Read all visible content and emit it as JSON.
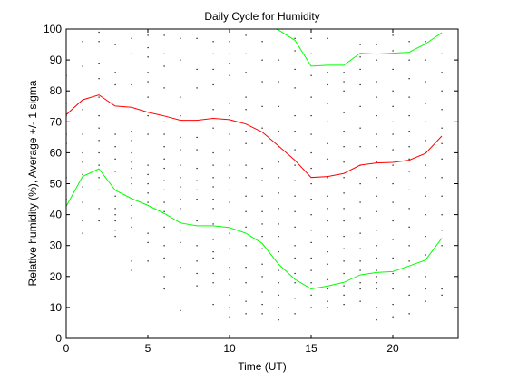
{
  "chart_data": {
    "type": "line",
    "title": "Daily Cycle for Humidity",
    "xlabel": "Time (UT)",
    "ylabel": "Relative humidity (%), Average +/- 1 sigma",
    "xlim": [
      0,
      24
    ],
    "ylim": [
      0,
      100
    ],
    "x_ticks": [
      0,
      5,
      10,
      15,
      20
    ],
    "y_ticks": [
      0,
      10,
      20,
      30,
      40,
      50,
      60,
      70,
      80,
      90,
      100
    ],
    "grid": false,
    "legend": "none",
    "x": [
      0,
      1,
      2,
      3,
      4,
      5,
      6,
      7,
      8,
      9,
      10,
      11,
      12,
      13,
      14,
      15,
      16,
      17,
      18,
      19,
      20,
      21,
      22,
      23
    ],
    "series": [
      {
        "role": "average",
        "color": "#ff0000",
        "values": [
          72.3,
          77.1,
          78.7,
          75.1,
          74.7,
          73.1,
          71.9,
          70.5,
          70.5,
          71.1,
          70.7,
          69.3,
          66.7,
          62.2,
          57.6,
          52.0,
          52.3,
          53.3,
          56.0,
          56.7,
          56.9,
          57.6,
          59.8,
          65.4
        ]
      },
      {
        "role": "average + 1 sigma",
        "color": "#00ff00",
        "values": [
          101.8,
          101.8,
          101.8,
          101.8,
          101.8,
          101.8,
          101.8,
          101.8,
          101.8,
          101.8,
          101.8,
          101.8,
          101.8,
          99.7,
          96.4,
          88.0,
          88.3,
          88.3,
          92.2,
          91.9,
          92.2,
          92.5,
          95.2,
          98.8
        ]
      },
      {
        "role": "average - 1 sigma",
        "color": "#00ff00",
        "values": [
          42.7,
          52.3,
          54.8,
          47.9,
          45.2,
          43.0,
          40.4,
          37.3,
          36.4,
          36.4,
          35.8,
          34.0,
          30.7,
          24.0,
          19.1,
          16.0,
          16.9,
          18.1,
          20.5,
          21.3,
          21.6,
          23.4,
          25.3,
          32.4
        ]
      }
    ],
    "scatter_color": "#000000",
    "scatter_points": [
      [
        0,
        40
      ],
      [
        0,
        45
      ],
      [
        0,
        52
      ],
      [
        0,
        63
      ],
      [
        0,
        66
      ],
      [
        0,
        72
      ],
      [
        0,
        76
      ],
      [
        0,
        80
      ],
      [
        0,
        85
      ],
      [
        1,
        34
      ],
      [
        1,
        38
      ],
      [
        1,
        44
      ],
      [
        1,
        49
      ],
      [
        1,
        53
      ],
      [
        1,
        57
      ],
      [
        1,
        60
      ],
      [
        1,
        66
      ],
      [
        1,
        74
      ],
      [
        1,
        88
      ],
      [
        1,
        96
      ],
      [
        2,
        38
      ],
      [
        2,
        42
      ],
      [
        2,
        48
      ],
      [
        2,
        52
      ],
      [
        2,
        56
      ],
      [
        2,
        60
      ],
      [
        2,
        64
      ],
      [
        2,
        68
      ],
      [
        2,
        72
      ],
      [
        2,
        78
      ],
      [
        2,
        84
      ],
      [
        2,
        89
      ],
      [
        2,
        96
      ],
      [
        2,
        99
      ],
      [
        3,
        33
      ],
      [
        3,
        35
      ],
      [
        3,
        38
      ],
      [
        3,
        40
      ],
      [
        3,
        42
      ],
      [
        3,
        46
      ],
      [
        3,
        54
      ],
      [
        3,
        58
      ],
      [
        3,
        62
      ],
      [
        3,
        66
      ],
      [
        3,
        82
      ],
      [
        3,
        86
      ],
      [
        3,
        95
      ],
      [
        4,
        22
      ],
      [
        4,
        25
      ],
      [
        4,
        36
      ],
      [
        4,
        39
      ],
      [
        4,
        43
      ],
      [
        4,
        48
      ],
      [
        4,
        50
      ],
      [
        4,
        52
      ],
      [
        4,
        55
      ],
      [
        4,
        57
      ],
      [
        4,
        60
      ],
      [
        4,
        64
      ],
      [
        4,
        67
      ],
      [
        4,
        82
      ],
      [
        4,
        92
      ],
      [
        4,
        97
      ],
      [
        5,
        25
      ],
      [
        5,
        31
      ],
      [
        5,
        34
      ],
      [
        5,
        44
      ],
      [
        5,
        47
      ],
      [
        5,
        50
      ],
      [
        5,
        53
      ],
      [
        5,
        56
      ],
      [
        5,
        66
      ],
      [
        5,
        72
      ],
      [
        5,
        78
      ],
      [
        5,
        83
      ],
      [
        5,
        86
      ],
      [
        5,
        91
      ],
      [
        5,
        94
      ],
      [
        5,
        98
      ],
      [
        6,
        16
      ],
      [
        6,
        20
      ],
      [
        6,
        26
      ],
      [
        6,
        30
      ],
      [
        6,
        36
      ],
      [
        6,
        41
      ],
      [
        6,
        44
      ],
      [
        6,
        48
      ],
      [
        6,
        51
      ],
      [
        6,
        55
      ],
      [
        6,
        58
      ],
      [
        6,
        62
      ],
      [
        6,
        66
      ],
      [
        6,
        70
      ],
      [
        6,
        81
      ],
      [
        6,
        88
      ],
      [
        6,
        92
      ],
      [
        6,
        98
      ],
      [
        7,
        9
      ],
      [
        7,
        23
      ],
      [
        7,
        31
      ],
      [
        7,
        35
      ],
      [
        7,
        42
      ],
      [
        7,
        45
      ],
      [
        7,
        49
      ],
      [
        7,
        52
      ],
      [
        7,
        56
      ],
      [
        7,
        61
      ],
      [
        7,
        65
      ],
      [
        7,
        72
      ],
      [
        7,
        78
      ],
      [
        7,
        90
      ],
      [
        7,
        97
      ],
      [
        8,
        17
      ],
      [
        8,
        21
      ],
      [
        8,
        25
      ],
      [
        8,
        30
      ],
      [
        8,
        38
      ],
      [
        8,
        45
      ],
      [
        8,
        48
      ],
      [
        8,
        51
      ],
      [
        8,
        55
      ],
      [
        8,
        61
      ],
      [
        8,
        65
      ],
      [
        8,
        81
      ],
      [
        8,
        87
      ],
      [
        8,
        97
      ],
      [
        9,
        11
      ],
      [
        9,
        18
      ],
      [
        9,
        21
      ],
      [
        9,
        26
      ],
      [
        9,
        28
      ],
      [
        9,
        32
      ],
      [
        9,
        37
      ],
      [
        9,
        42
      ],
      [
        9,
        45
      ],
      [
        9,
        49
      ],
      [
        9,
        52
      ],
      [
        9,
        56
      ],
      [
        9,
        60
      ],
      [
        9,
        68
      ],
      [
        9,
        74
      ],
      [
        9,
        82
      ],
      [
        9,
        87
      ],
      [
        9,
        92
      ],
      [
        9,
        96
      ],
      [
        10,
        7
      ],
      [
        10,
        10
      ],
      [
        10,
        14
      ],
      [
        10,
        19
      ],
      [
        10,
        23
      ],
      [
        10,
        29
      ],
      [
        10,
        34
      ],
      [
        10,
        38
      ],
      [
        10,
        44
      ],
      [
        10,
        48
      ],
      [
        10,
        52
      ],
      [
        10,
        56
      ],
      [
        10,
        61
      ],
      [
        10,
        66
      ],
      [
        10,
        72
      ],
      [
        10,
        76
      ],
      [
        10,
        85
      ],
      [
        10,
        89
      ],
      [
        10,
        92
      ],
      [
        10,
        96
      ],
      [
        11,
        8
      ],
      [
        11,
        12
      ],
      [
        11,
        18
      ],
      [
        11,
        23
      ],
      [
        11,
        30
      ],
      [
        11,
        36
      ],
      [
        11,
        41
      ],
      [
        11,
        46
      ],
      [
        11,
        52
      ],
      [
        11,
        56
      ],
      [
        11,
        63
      ],
      [
        11,
        67
      ],
      [
        11,
        74
      ],
      [
        11,
        78
      ],
      [
        11,
        86
      ],
      [
        11,
        92
      ],
      [
        11,
        98
      ],
      [
        12,
        8
      ],
      [
        12,
        11
      ],
      [
        12,
        15
      ],
      [
        12,
        20
      ],
      [
        12,
        24
      ],
      [
        12,
        29
      ],
      [
        12,
        33
      ],
      [
        12,
        37
      ],
      [
        12,
        41
      ],
      [
        12,
        46
      ],
      [
        12,
        51
      ],
      [
        12,
        55
      ],
      [
        12,
        63
      ],
      [
        12,
        68
      ],
      [
        12,
        75
      ],
      [
        12,
        83
      ],
      [
        12,
        90
      ],
      [
        12,
        96
      ],
      [
        13,
        6
      ],
      [
        13,
        10
      ],
      [
        13,
        14
      ],
      [
        13,
        18
      ],
      [
        13,
        22
      ],
      [
        13,
        28
      ],
      [
        13,
        33
      ],
      [
        13,
        37
      ],
      [
        13,
        42
      ],
      [
        13,
        47
      ],
      [
        13,
        52
      ],
      [
        13,
        57
      ],
      [
        13,
        62
      ],
      [
        13,
        67
      ],
      [
        13,
        75
      ],
      [
        13,
        83
      ],
      [
        13,
        90
      ],
      [
        14,
        8
      ],
      [
        14,
        13
      ],
      [
        14,
        18
      ],
      [
        14,
        21
      ],
      [
        14,
        26
      ],
      [
        14,
        30
      ],
      [
        14,
        36
      ],
      [
        14,
        41
      ],
      [
        14,
        46
      ],
      [
        14,
        51
      ],
      [
        14,
        56
      ],
      [
        14,
        61
      ],
      [
        14,
        67
      ],
      [
        14,
        72
      ],
      [
        14,
        81
      ],
      [
        14,
        87
      ],
      [
        14,
        93
      ],
      [
        14,
        97
      ],
      [
        15,
        10
      ],
      [
        15,
        14
      ],
      [
        15,
        18
      ],
      [
        15,
        22
      ],
      [
        15,
        26
      ],
      [
        15,
        31
      ],
      [
        15,
        35
      ],
      [
        15,
        40
      ],
      [
        15,
        45
      ],
      [
        15,
        50
      ],
      [
        15,
        55
      ],
      [
        15,
        60
      ],
      [
        15,
        66
      ],
      [
        15,
        72
      ],
      [
        15,
        78
      ],
      [
        15,
        85
      ],
      [
        15,
        92
      ],
      [
        15,
        97
      ],
      [
        16,
        10
      ],
      [
        16,
        12
      ],
      [
        16,
        16
      ],
      [
        16,
        19
      ],
      [
        16,
        24
      ],
      [
        16,
        28
      ],
      [
        16,
        33
      ],
      [
        16,
        38
      ],
      [
        16,
        42
      ],
      [
        16,
        46
      ],
      [
        16,
        52
      ],
      [
        16,
        58
      ],
      [
        16,
        63
      ],
      [
        16,
        70
      ],
      [
        16,
        76
      ],
      [
        16,
        82
      ],
      [
        16,
        86
      ],
      [
        16,
        97
      ],
      [
        17,
        11
      ],
      [
        17,
        14
      ],
      [
        17,
        17
      ],
      [
        17,
        21
      ],
      [
        17,
        25
      ],
      [
        17,
        29
      ],
      [
        17,
        33
      ],
      [
        17,
        38
      ],
      [
        17,
        42
      ],
      [
        17,
        47
      ],
      [
        17,
        52
      ],
      [
        17,
        57
      ],
      [
        17,
        62
      ],
      [
        17,
        67
      ],
      [
        17,
        73
      ],
      [
        17,
        80
      ],
      [
        17,
        83
      ],
      [
        17,
        86
      ],
      [
        18,
        12
      ],
      [
        18,
        16
      ],
      [
        18,
        18
      ],
      [
        18,
        22
      ],
      [
        18,
        25
      ],
      [
        18,
        29
      ],
      [
        18,
        34
      ],
      [
        18,
        39
      ],
      [
        18,
        44
      ],
      [
        18,
        50
      ],
      [
        18,
        56
      ],
      [
        18,
        62
      ],
      [
        18,
        68
      ],
      [
        18,
        75
      ],
      [
        18,
        82
      ],
      [
        18,
        87
      ],
      [
        18,
        91
      ],
      [
        18,
        95
      ],
      [
        19,
        6
      ],
      [
        19,
        10
      ],
      [
        19,
        16
      ],
      [
        19,
        18
      ],
      [
        19,
        20
      ],
      [
        19,
        22
      ],
      [
        19,
        26
      ],
      [
        19,
        30
      ],
      [
        19,
        35
      ],
      [
        19,
        41
      ],
      [
        19,
        46
      ],
      [
        19,
        52
      ],
      [
        19,
        57
      ],
      [
        19,
        62
      ],
      [
        19,
        66
      ],
      [
        19,
        72
      ],
      [
        19,
        78
      ],
      [
        19,
        83
      ],
      [
        19,
        90
      ],
      [
        19,
        95
      ],
      [
        20,
        7
      ],
      [
        20,
        11
      ],
      [
        20,
        16
      ],
      [
        20,
        21
      ],
      [
        20,
        26
      ],
      [
        20,
        32
      ],
      [
        20,
        38
      ],
      [
        20,
        44
      ],
      [
        20,
        50
      ],
      [
        20,
        56
      ],
      [
        20,
        61
      ],
      [
        20,
        66
      ],
      [
        20,
        70
      ],
      [
        20,
        75
      ],
      [
        20,
        80
      ],
      [
        20,
        87
      ],
      [
        20,
        93
      ],
      [
        20,
        98
      ],
      [
        21,
        8
      ],
      [
        21,
        14
      ],
      [
        21,
        20
      ],
      [
        21,
        25
      ],
      [
        21,
        30
      ],
      [
        21,
        36
      ],
      [
        21,
        42
      ],
      [
        21,
        48
      ],
      [
        21,
        54
      ],
      [
        21,
        58
      ],
      [
        21,
        62
      ],
      [
        21,
        67
      ],
      [
        21,
        72
      ],
      [
        21,
        78
      ],
      [
        21,
        84
      ],
      [
        21,
        90
      ],
      [
        21,
        96
      ],
      [
        22,
        12
      ],
      [
        22,
        16
      ],
      [
        22,
        20
      ],
      [
        22,
        27
      ],
      [
        22,
        33
      ],
      [
        22,
        40
      ],
      [
        22,
        46
      ],
      [
        22,
        52
      ],
      [
        22,
        56
      ],
      [
        22,
        60
      ],
      [
        22,
        64
      ],
      [
        22,
        70
      ],
      [
        22,
        76
      ],
      [
        22,
        83
      ],
      [
        22,
        90
      ],
      [
        22,
        96
      ],
      [
        23,
        14
      ],
      [
        23,
        16
      ],
      [
        23,
        30
      ],
      [
        23,
        35
      ],
      [
        23,
        40
      ],
      [
        23,
        46
      ],
      [
        23,
        52
      ],
      [
        23,
        58
      ],
      [
        23,
        63
      ],
      [
        23,
        68
      ],
      [
        23,
        74
      ],
      [
        23,
        80
      ],
      [
        23,
        86
      ],
      [
        23,
        92
      ]
    ]
  }
}
